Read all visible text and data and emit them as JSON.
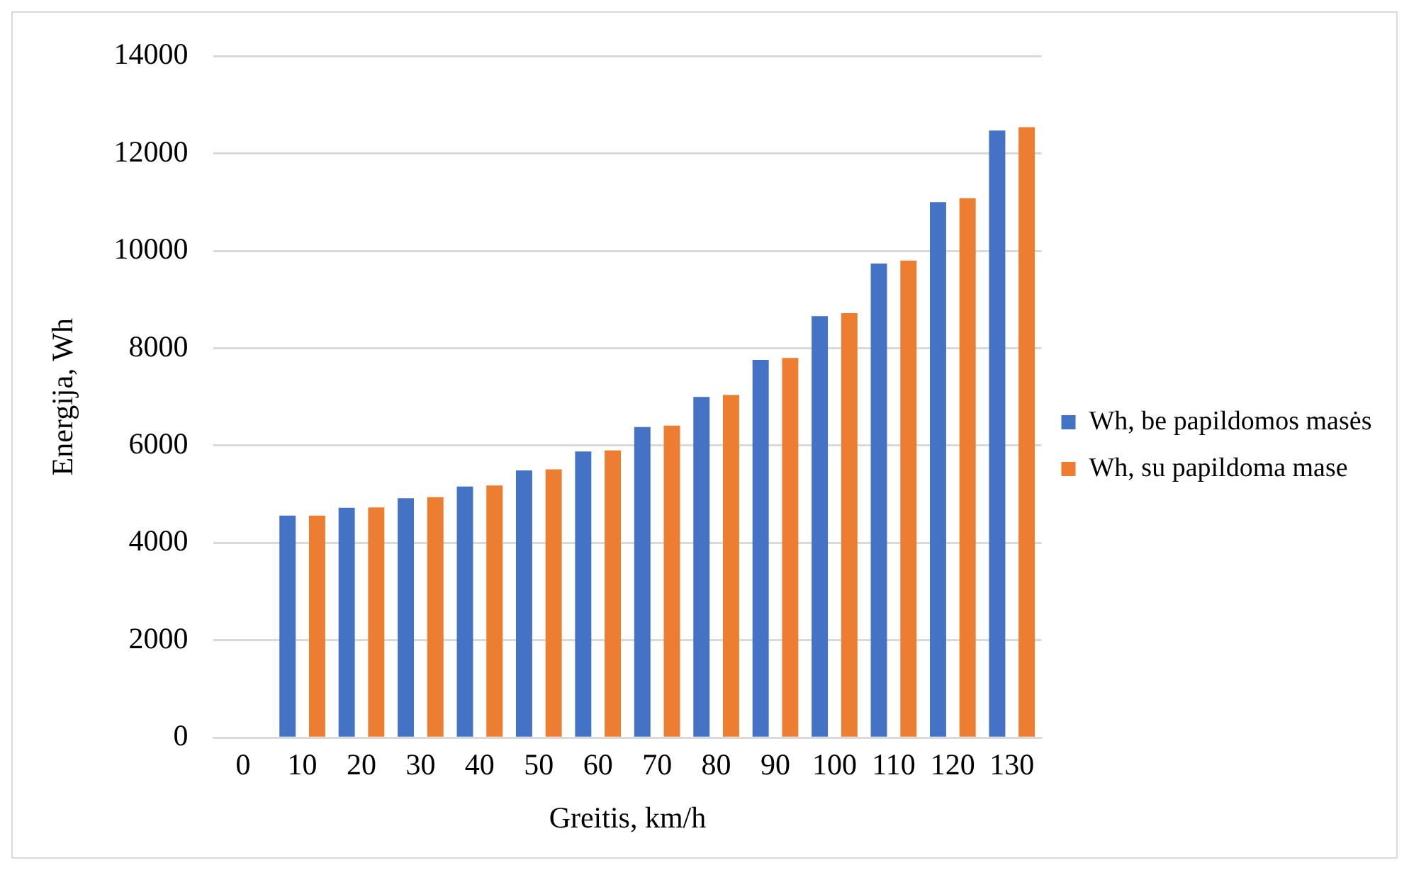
{
  "chart_data": {
    "type": "bar",
    "xlabel": "Greitis, km/h",
    "ylabel": "Energija, Wh",
    "categories": [
      "0",
      "10",
      "20",
      "30",
      "40",
      "50",
      "60",
      "70",
      "80",
      "90",
      "100",
      "110",
      "120",
      "130"
    ],
    "series": [
      {
        "name": "Wh, be papildomos masės",
        "color": "#4472c4",
        "values": [
          null,
          4560,
          4720,
          4920,
          5160,
          5490,
          5880,
          6380,
          7000,
          7760,
          8660,
          9740,
          11000,
          12470
        ]
      },
      {
        "name": "Wh, su papildoma mase",
        "color": "#ed7d31",
        "values": [
          null,
          4560,
          4730,
          4940,
          5180,
          5510,
          5900,
          6410,
          7040,
          7800,
          8720,
          9800,
          11080,
          12540
        ]
      }
    ],
    "ylim": [
      0,
      14000
    ],
    "yticks": [
      0,
      2000,
      4000,
      6000,
      8000,
      10000,
      12000,
      14000
    ],
    "grid": "y",
    "legend": "right"
  }
}
